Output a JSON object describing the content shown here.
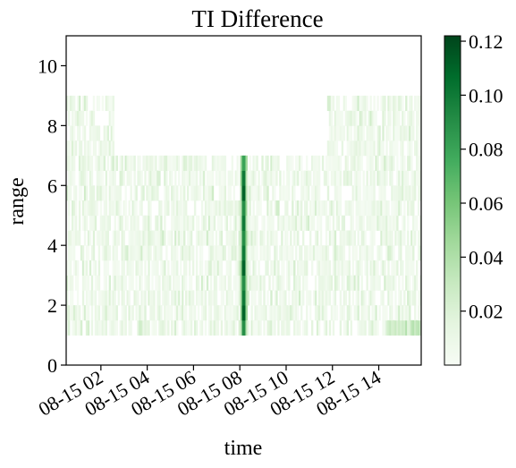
{
  "chart_data": {
    "type": "heatmap",
    "title": "TI Difference",
    "xlabel": "time",
    "ylabel": "range",
    "x_start": "08-15 00:30",
    "x_end": "08-15 15:50",
    "x_ticks": [
      "08-15 02",
      "08-15 04",
      "08-15 06",
      "08-15 08",
      "08-15 10",
      "08-15 12",
      "08-15 14"
    ],
    "x_tick_hours": [
      2,
      4,
      6,
      8,
      10,
      12,
      14
    ],
    "ylim": [
      0,
      11
    ],
    "y_ticks": [
      "0",
      "2",
      "4",
      "6",
      "8",
      "10"
    ],
    "range_bins": [
      1.0,
      1.5,
      2.0,
      2.5,
      3.0,
      3.5,
      4.0,
      4.5,
      5.0,
      5.5,
      6.0,
      6.5,
      7.0,
      7.5,
      8.0,
      8.5,
      9.0
    ],
    "colormap": "Greens",
    "colorbar_range": [
      0.0,
      0.122
    ],
    "colorbar_ticks": [
      "0.02",
      "0.04",
      "0.06",
      "0.08",
      "0.10",
      "0.12"
    ],
    "notable_feature": {
      "time": "08-15 08:10",
      "values_by_range": [
        0.09,
        0.11,
        0.1,
        0.09,
        0.11,
        0.1,
        0.09,
        0.1,
        0.09,
        0.11,
        0.1,
        0.08
      ]
    },
    "typical_value_range": [
      0.0,
      0.02
    ],
    "grid": false
  }
}
